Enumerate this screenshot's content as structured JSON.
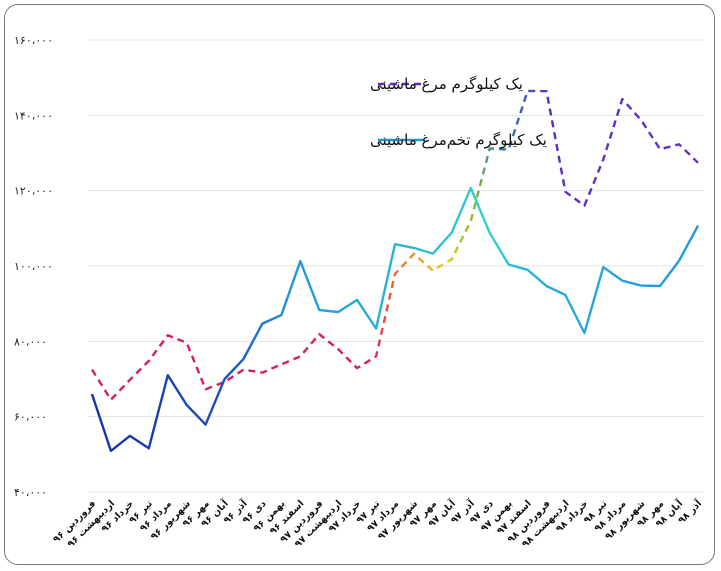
{
  "chart_data": {
    "type": "line",
    "title": "",
    "xlabel": "",
    "ylabel": "",
    "ylim": [
      40000,
      160000
    ],
    "yticks": [
      "۴۰،۰۰۰",
      "۶۰،۰۰۰",
      "۸۰،۰۰۰",
      "۱۰۰،۰۰۰",
      "۱۲۰،۰۰۰",
      "۱۴۰،۰۰۰",
      "۱۶۰،۰۰۰"
    ],
    "ytick_values": [
      40000,
      60000,
      80000,
      100000,
      120000,
      140000,
      160000
    ],
    "grid": true,
    "legend_position": "top-center",
    "categories": [
      "فروردین ۹۶",
      "اردیبهشت ۹۶",
      "خرداد ۹۶",
      "تیر ۹۶",
      "مرداد ۹۶",
      "شهریور ۹۶",
      "مهر ۹۶",
      "آبان ۹۶",
      "آذر ۹۶",
      "دی ۹۶",
      "بهمن ۹۶",
      "اسفند ۹۶",
      "فروردین ۹۷",
      "اردیبهشت ۹۷",
      "خرداد ۹۷",
      "تیر ۹۷",
      "مرداد ۹۷",
      "شهریور ۹۷",
      "مهر ۹۷",
      "آبان ۹۷",
      "آذر ۹۷",
      "دی ۹۷",
      "بهمن ۹۷",
      "اسفند ۹۷",
      "فروردین ۹۸",
      "اردیبهشت ۹۸",
      "خرداد ۹۸",
      "تیر ۹۸",
      "مرداد ۹۸",
      "شهریور ۹۸",
      "مهر ۹۸",
      "آبان ۹۸",
      "آذر ۹۸"
    ],
    "series": [
      {
        "name": "یک کیلوگرم مرغ ماشینی",
        "style": "dashed",
        "colors": [
          "#d81b6a",
          "#e6a817",
          "#6a2fbf"
        ],
        "values": [
          72500,
          64500,
          69800,
          74800,
          81600,
          79600,
          67300,
          69200,
          72500,
          71700,
          73900,
          76000,
          81900,
          77900,
          72900,
          76000,
          97900,
          103200,
          98800,
          101800,
          112000,
          131200,
          130900,
          146500,
          146400,
          119700,
          116000,
          128300,
          144300,
          138700,
          131000,
          132300,
          127400
        ]
      },
      {
        "name": "یک کیلوگرم تخم‌مرغ ماشینی",
        "style": "solid",
        "colors": [
          "#1a2fa6",
          "#2196e0",
          "#35d0c8"
        ],
        "values": [
          66000,
          50900,
          54900,
          51600,
          71000,
          63100,
          57900,
          70000,
          75300,
          84700,
          87000,
          101300,
          88300,
          87800,
          91000,
          83400,
          105800,
          104800,
          103300,
          108900,
          120700,
          108800,
          100400,
          99000,
          94700,
          92300,
          82200,
          99700,
          96100,
          94800,
          94700,
          101400,
          110700
        ]
      }
    ]
  }
}
